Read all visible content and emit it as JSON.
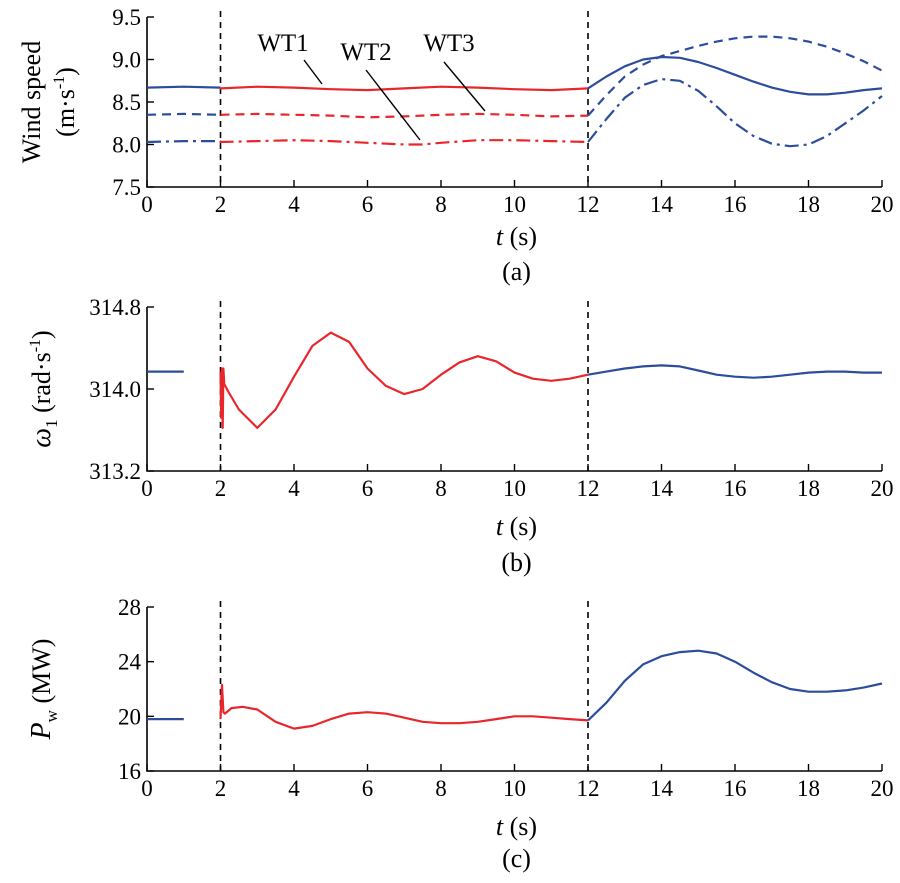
{
  "colors": {
    "before": "#e8262c",
    "after": "#2b4d9c"
  },
  "chart_data": [
    {
      "type": "line",
      "caption": "(a)",
      "xlabel_italic": "t",
      "xlabel_unit": "(s)",
      "ylabel": "Wind speed",
      "ylabel_unit": "(m·s-1)",
      "xlim": [
        0,
        20
      ],
      "ylim": [
        7.5,
        9.5
      ],
      "xticks": [
        "0",
        "2",
        "4",
        "6",
        "8",
        "10",
        "12",
        "14",
        "16",
        "18",
        "20"
      ],
      "yticks": [
        "7.5",
        "8.0",
        "8.5",
        "9.0",
        "9.5"
      ],
      "markers": [
        2,
        12
      ],
      "series": [
        {
          "name": "WT1",
          "style": "solid",
          "x": [
            0,
            1,
            2,
            2,
            3,
            4,
            5,
            6,
            7,
            8,
            9,
            10,
            11,
            12,
            12,
            12.5,
            13,
            13.5,
            14,
            14.5,
            15,
            15.5,
            16,
            16.5,
            17,
            17.5,
            18,
            18.5,
            19,
            19.5,
            20
          ],
          "y": [
            8.67,
            8.68,
            8.67,
            8.66,
            8.68,
            8.67,
            8.65,
            8.64,
            8.66,
            8.68,
            8.67,
            8.65,
            8.64,
            8.66,
            8.66,
            8.8,
            8.92,
            9.0,
            9.03,
            9.02,
            8.97,
            8.9,
            8.82,
            8.74,
            8.67,
            8.62,
            8.59,
            8.59,
            8.61,
            8.64,
            8.66
          ]
        },
        {
          "name": "WT2",
          "style": "dashdot",
          "x": [
            0,
            1,
            2,
            2,
            3,
            4,
            5,
            6,
            7,
            7.5,
            8,
            9,
            10,
            11,
            12,
            12,
            12.5,
            13,
            13.5,
            14,
            14.5,
            15,
            15.5,
            16,
            16.5,
            17,
            17.5,
            18,
            18.5,
            19,
            19.5,
            20
          ],
          "y": [
            8.03,
            8.04,
            8.04,
            8.03,
            8.04,
            8.05,
            8.04,
            8.02,
            8.0,
            8.0,
            8.02,
            8.05,
            8.05,
            8.04,
            8.03,
            8.03,
            8.3,
            8.55,
            8.7,
            8.77,
            8.75,
            8.63,
            8.45,
            8.25,
            8.1,
            8.01,
            7.98,
            8.0,
            8.1,
            8.25,
            8.4,
            8.57
          ]
        },
        {
          "name": "WT3",
          "style": "dashed",
          "x": [
            0,
            1,
            2,
            2,
            3,
            4,
            5,
            6,
            7,
            8,
            9,
            10,
            11,
            12,
            12,
            12.5,
            13,
            13.5,
            14,
            14.5,
            15,
            15.5,
            16,
            16.5,
            17,
            17.5,
            18,
            18.5,
            19,
            19.5,
            20
          ],
          "y": [
            8.35,
            8.36,
            8.35,
            8.35,
            8.36,
            8.35,
            8.34,
            8.32,
            8.33,
            8.35,
            8.36,
            8.35,
            8.33,
            8.34,
            8.34,
            8.58,
            8.8,
            8.94,
            9.04,
            9.1,
            9.16,
            9.21,
            9.25,
            9.27,
            9.27,
            9.25,
            9.21,
            9.15,
            9.07,
            8.98,
            8.87
          ]
        }
      ],
      "annotations": [
        {
          "text": "WT1",
          "series": "WT1"
        },
        {
          "text": "WT2",
          "series": "WT2"
        },
        {
          "text": "WT3",
          "series": "WT3"
        }
      ]
    },
    {
      "type": "line",
      "caption": "(b)",
      "xlabel_italic": "t",
      "xlabel_unit": "(s)",
      "ylabel_symbol": "ω",
      "ylabel_sub": "1",
      "ylabel_unit": "(rad·s-1)",
      "xlim": [
        0,
        20
      ],
      "ylim": [
        313.2,
        314.8
      ],
      "xticks": [
        "0",
        "2",
        "4",
        "6",
        "8",
        "10",
        "12",
        "14",
        "16",
        "18",
        "20"
      ],
      "yticks": [
        "313.2",
        "314.0",
        "314.8"
      ],
      "markers": [
        2,
        12
      ],
      "series": [
        {
          "style": "solid",
          "x": [
            0,
            1,
            2,
            2,
            2.02,
            2.04,
            2.06,
            2.08,
            2.1,
            2.2,
            2.5,
            3,
            3.5,
            4,
            4.5,
            5,
            5.5,
            6,
            6.5,
            7,
            7.5,
            8,
            8.5,
            9,
            9.5,
            10,
            10.5,
            11,
            11.5,
            12,
            12,
            12.5,
            13,
            13.5,
            14,
            14.5,
            15,
            15.5,
            16,
            16.5,
            17,
            17.5,
            18,
            18.5,
            19,
            19.5,
            20
          ],
          "y": [
            314.17,
            314.17,
            314.17,
            314.17,
            313.72,
            314.2,
            313.62,
            314.2,
            314.05,
            313.98,
            313.8,
            313.62,
            313.8,
            314.12,
            314.42,
            314.55,
            314.46,
            314.2,
            314.03,
            313.95,
            314.0,
            314.14,
            314.26,
            314.32,
            314.27,
            314.16,
            314.1,
            314.08,
            314.1,
            314.14,
            314.14,
            314.17,
            314.2,
            314.22,
            314.23,
            314.22,
            314.18,
            314.14,
            314.12,
            314.11,
            314.12,
            314.14,
            314.16,
            314.17,
            314.17,
            314.16,
            314.16
          ]
        }
      ]
    },
    {
      "type": "line",
      "caption": "(c)",
      "xlabel_italic": "t",
      "xlabel_unit": "(s)",
      "ylabel_symbol": "P",
      "ylabel_sub": "w",
      "ylabel_unit": "(MW)",
      "xlim": [
        0,
        20
      ],
      "ylim": [
        16,
        28
      ],
      "xticks": [
        "0",
        "2",
        "4",
        "6",
        "8",
        "10",
        "12",
        "14",
        "16",
        "18",
        "20"
      ],
      "yticks": [
        "16",
        "20",
        "24",
        "28"
      ],
      "markers": [
        2,
        12
      ],
      "series": [
        {
          "style": "solid",
          "x": [
            0,
            1,
            2,
            2,
            2.04,
            2.08,
            2.12,
            2.3,
            2.6,
            3,
            3.5,
            4,
            4.5,
            5,
            5.5,
            6,
            6.5,
            7,
            7.5,
            8,
            8.5,
            9,
            9.5,
            10,
            10.5,
            11,
            11.5,
            12,
            12,
            12.5,
            13,
            13.5,
            14,
            14.5,
            15,
            15.5,
            16,
            16.5,
            17,
            17.5,
            18,
            18.5,
            19,
            19.5,
            20
          ],
          "y": [
            19.8,
            19.8,
            19.8,
            19.8,
            22.3,
            20.3,
            20.2,
            20.6,
            20.7,
            20.5,
            19.6,
            19.1,
            19.3,
            19.8,
            20.2,
            20.3,
            20.2,
            19.9,
            19.6,
            19.5,
            19.5,
            19.6,
            19.8,
            20.0,
            20.0,
            19.9,
            19.8,
            19.7,
            19.7,
            21.0,
            22.6,
            23.8,
            24.4,
            24.7,
            24.8,
            24.6,
            24.0,
            23.2,
            22.5,
            22.0,
            21.8,
            21.8,
            21.9,
            22.1,
            22.4
          ]
        }
      ]
    }
  ]
}
